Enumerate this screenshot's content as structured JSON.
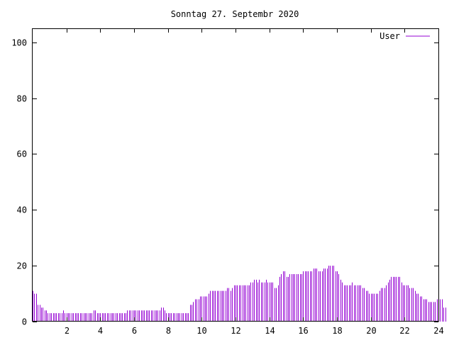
{
  "chart_data": {
    "type": "bar",
    "title": "Sonntag 27. Septembr 2020",
    "xlabel": "",
    "ylabel": "",
    "xlim": [
      0,
      24
    ],
    "ylim": [
      0,
      105
    ],
    "x_ticks": [
      2,
      4,
      6,
      8,
      10,
      12,
      14,
      16,
      18,
      20,
      22,
      24
    ],
    "y_ticks": [
      0,
      20,
      40,
      60,
      80,
      100
    ],
    "grid": false,
    "legend_position": "top-right",
    "series": [
      {
        "name": "User",
        "color": "#9400d3",
        "bin_width_hours": 0.1,
        "values": [
          11,
          10,
          10,
          6,
          6,
          5,
          5,
          4,
          4,
          3,
          3,
          3,
          3,
          3,
          3,
          3,
          3,
          3,
          4,
          3,
          3,
          3,
          3,
          3,
          3,
          3,
          3,
          3,
          3,
          3,
          3,
          3,
          3,
          3,
          3,
          3,
          4,
          4,
          3,
          3,
          3,
          3,
          3,
          3,
          3,
          3,
          3,
          3,
          3,
          3,
          3,
          3,
          3,
          3,
          3,
          3,
          4,
          4,
          4,
          4,
          4,
          4,
          4,
          4,
          4,
          4,
          4,
          4,
          4,
          4,
          4,
          4,
          4,
          4,
          4,
          4,
          5,
          5,
          4,
          3,
          3,
          3,
          3,
          3,
          3,
          3,
          3,
          3,
          3,
          3,
          3,
          3,
          3,
          6,
          6,
          7,
          8,
          8,
          8,
          9,
          9,
          9,
          9,
          9,
          10,
          11,
          11,
          11,
          11,
          11,
          11,
          11,
          11,
          11,
          11,
          12,
          12,
          11,
          12,
          13,
          13,
          13,
          13,
          13,
          13,
          13,
          13,
          13,
          13,
          14,
          14,
          15,
          15,
          14,
          15,
          14,
          14,
          14,
          15,
          14,
          14,
          14,
          14,
          12,
          12,
          13,
          16,
          17,
          18,
          18,
          16,
          16,
          17,
          17,
          17,
          17,
          17,
          17,
          17,
          17,
          18,
          18,
          18,
          18,
          18,
          18,
          19,
          19,
          19,
          18,
          18,
          18,
          19,
          19,
          19,
          20,
          20,
          20,
          20,
          18,
          18,
          17,
          15,
          14,
          13,
          13,
          13,
          13,
          13,
          14,
          13,
          13,
          13,
          13,
          13,
          12,
          12,
          11,
          11,
          10,
          10,
          10,
          10,
          10,
          10,
          11,
          12,
          12,
          12,
          13,
          14,
          15,
          16,
          16,
          16,
          16,
          16,
          16,
          14,
          13,
          13,
          13,
          13,
          12,
          12,
          12,
          11,
          10,
          10,
          9,
          9,
          8,
          8,
          8,
          7,
          7,
          7,
          7,
          7,
          8,
          8,
          8,
          8,
          5,
          5
        ]
      }
    ]
  }
}
